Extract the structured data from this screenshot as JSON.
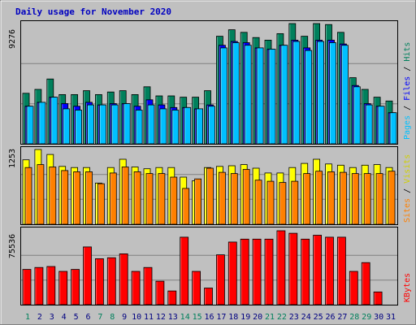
{
  "chart_data": [
    {
      "type": "bar",
      "title": "Daily usage for November 2020",
      "panel": "hits-files-pages",
      "ymax_label": "9276",
      "ylim": [
        0,
        9276
      ],
      "right_label": [
        "Pages",
        "Files",
        "Hits"
      ],
      "legend_colors": {
        "Pages": "#00c0ff",
        "Files": "#0000ff",
        "Hits": "#00805c"
      },
      "categories": [
        "1",
        "2",
        "3",
        "4",
        "5",
        "6",
        "7",
        "8",
        "9",
        "10",
        "11",
        "12",
        "13",
        "14",
        "15",
        "16",
        "17",
        "18",
        "19",
        "20",
        "21",
        "22",
        "23",
        "24",
        "25",
        "26",
        "27",
        "28",
        "29",
        "30",
        "31"
      ],
      "series": [
        {
          "name": "Hits",
          "values": [
            3900,
            4200,
            5000,
            3800,
            3800,
            4100,
            3800,
            4000,
            4100,
            3800,
            4400,
            3700,
            3700,
            3600,
            3600,
            4100,
            8300,
            8800,
            8600,
            8200,
            8000,
            8500,
            9276,
            8300,
            9276,
            9200,
            8600,
            5100,
            4200,
            3600,
            3300
          ]
        },
        {
          "name": "Files",
          "values": [
            2900,
            3200,
            3600,
            3100,
            2900,
            3200,
            3000,
            3100,
            3100,
            2900,
            3400,
            3000,
            2800,
            2800,
            2700,
            3000,
            7600,
            7900,
            7800,
            7400,
            7300,
            7600,
            8000,
            7400,
            8000,
            8000,
            7700,
            4500,
            3100,
            2900,
            2400
          ]
        },
        {
          "name": "Pages",
          "values": [
            2900,
            3200,
            3600,
            2700,
            2600,
            3000,
            3000,
            3000,
            3100,
            2600,
            3000,
            2700,
            2600,
            2800,
            2700,
            2900,
            7400,
            7800,
            7600,
            7400,
            7300,
            7600,
            7900,
            7200,
            7900,
            7800,
            7600,
            4400,
            3000,
            2900,
            2400
          ]
        }
      ]
    },
    {
      "type": "bar",
      "panel": "visits-sites",
      "ymax_label": "1253",
      "ylim": [
        0,
        1253
      ],
      "right_label": [
        "Sites",
        "Visits"
      ],
      "legend_colors": {
        "Sites": "#ff8000",
        "Visits": "#ffff00"
      },
      "categories": [
        "1",
        "2",
        "3",
        "4",
        "5",
        "6",
        "7",
        "8",
        "9",
        "10",
        "11",
        "12",
        "13",
        "14",
        "15",
        "16",
        "17",
        "18",
        "19",
        "20",
        "21",
        "22",
        "23",
        "24",
        "25",
        "26",
        "27",
        "28",
        "29",
        "30",
        "31"
      ],
      "series": [
        {
          "name": "Visits",
          "values": [
            1080,
            1253,
            1170,
            970,
            950,
            950,
            690,
            950,
            1090,
            960,
            930,
            950,
            950,
            790,
            730,
            950,
            970,
            980,
            1000,
            940,
            860,
            860,
            950,
            1020,
            1090,
            1010,
            990,
            950,
            990,
            1000,
            950
          ]
        },
        {
          "name": "Sites",
          "values": [
            950,
            1000,
            960,
            900,
            880,
            880,
            680,
            860,
            960,
            880,
            850,
            850,
            790,
            600,
            760,
            940,
            870,
            850,
            920,
            740,
            720,
            700,
            720,
            850,
            890,
            880,
            870,
            850,
            850,
            850,
            890
          ]
        }
      ]
    },
    {
      "type": "bar",
      "panel": "kbytes",
      "ymax_label": "75536",
      "ylim": [
        0,
        75536
      ],
      "right_label": [
        "KBytes"
      ],
      "legend_colors": {
        "KBytes": "#ff0000"
      },
      "categories": [
        "1",
        "2",
        "3",
        "4",
        "5",
        "6",
        "7",
        "8",
        "9",
        "10",
        "11",
        "12",
        "13",
        "14",
        "15",
        "16",
        "17",
        "18",
        "19",
        "20",
        "21",
        "22",
        "23",
        "24",
        "25",
        "26",
        "27",
        "28",
        "29",
        "30",
        "31"
      ],
      "series": [
        {
          "name": "KBytes",
          "values": [
            36000,
            38000,
            39000,
            34000,
            36000,
            59000,
            47000,
            48000,
            52000,
            34000,
            38000,
            24000,
            14000,
            69000,
            34000,
            17000,
            51000,
            64000,
            67000,
            67000,
            67000,
            75536,
            73000,
            67000,
            71000,
            69000,
            69000,
            34000,
            43000,
            13000,
            0
          ]
        }
      ]
    }
  ],
  "xaxis": {
    "days": [
      "1",
      "2",
      "3",
      "4",
      "5",
      "6",
      "7",
      "8",
      "9",
      "10",
      "11",
      "12",
      "13",
      "14",
      "15",
      "16",
      "17",
      "18",
      "19",
      "20",
      "21",
      "22",
      "23",
      "24",
      "25",
      "26",
      "27",
      "28",
      "29",
      "30",
      "31"
    ],
    "weekend_days": [
      "1",
      "7",
      "8",
      "14",
      "15",
      "21",
      "22",
      "28",
      "29"
    ],
    "weekday_color": "#000080",
    "weekend_color": "#00805c"
  }
}
